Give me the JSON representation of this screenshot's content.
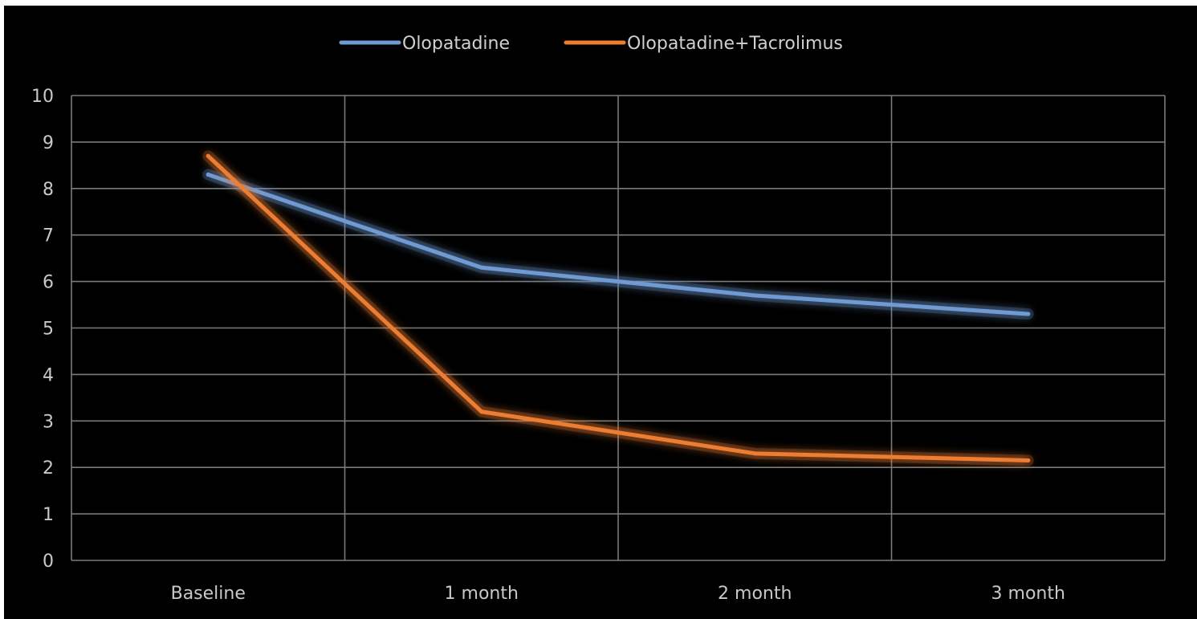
{
  "chart_data": {
    "type": "line",
    "categories": [
      "Baseline",
      "1 month",
      "2 month",
      "3 month"
    ],
    "series": [
      {
        "name": "Olopatadine",
        "values": [
          8.3,
          6.3,
          5.7,
          5.3
        ],
        "color": "#6f9ad3"
      },
      {
        "name": "Olopatadine+Tacrolimus",
        "values": [
          8.7,
          3.2,
          2.3,
          2.15
        ],
        "color": "#ed7d31"
      }
    ],
    "y_ticks": [
      "0",
      "1",
      "2",
      "3",
      "4",
      "5",
      "6",
      "7",
      "8",
      "9",
      "10"
    ],
    "ylim": [
      0,
      10
    ],
    "grid": true,
    "legend_position": "top",
    "background": "#000000"
  }
}
